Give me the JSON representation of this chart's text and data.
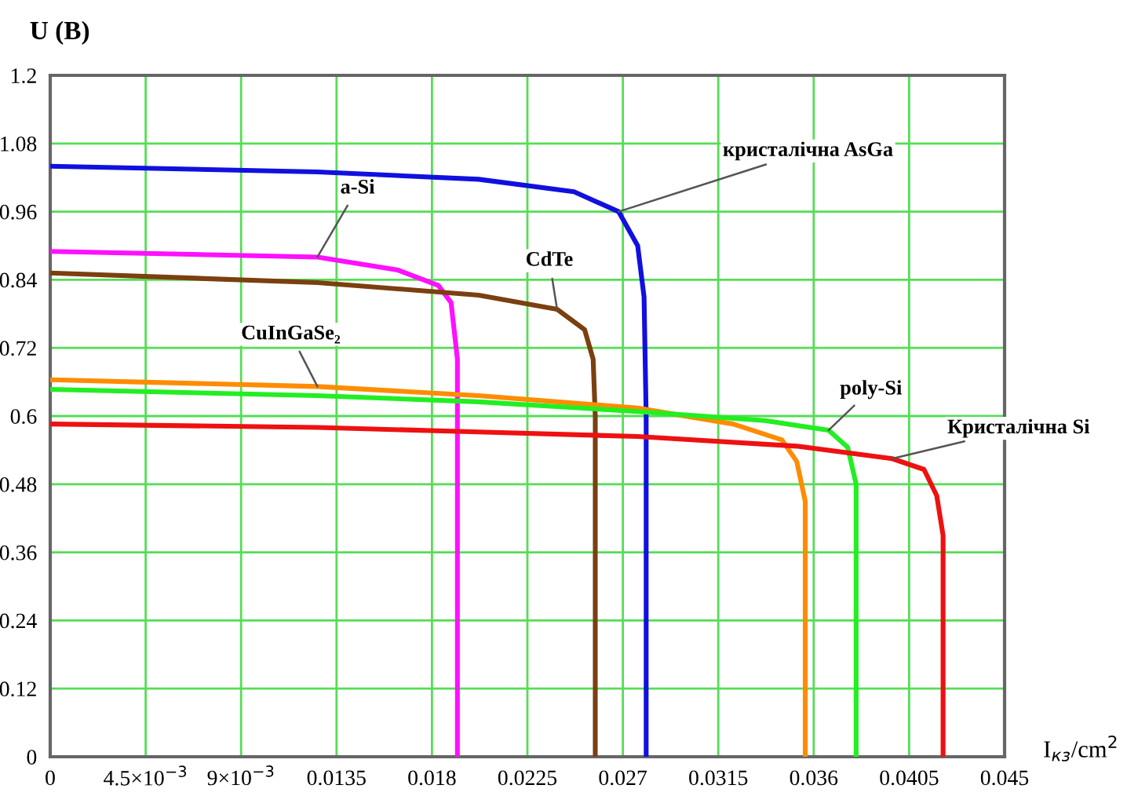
{
  "chart_data": {
    "type": "line",
    "ylabel": "U (B)",
    "xlabel": "I$_{кз}$/cm$^{2}$",
    "xlim": [
      0,
      0.045
    ],
    "xticks": [
      0,
      {
        "value": 0.0045,
        "label": "4.5×10$^{−3}$"
      },
      {
        "value": 0.009,
        "label": "9×10$^{−3}$"
      },
      0.0135,
      0.018,
      0.0225,
      0.027,
      0.0315,
      0.036,
      0.0405,
      0.045
    ],
    "ylim": [
      0,
      1.2
    ],
    "yticks": [
      0,
      0.12,
      0.24,
      0.36,
      0.48,
      0.6,
      0.72,
      0.84,
      0.96,
      1.08,
      1.2
    ],
    "grid": true,
    "marker": "none",
    "line_style": "solid",
    "series": [
      {
        "name": "кристалічна AsGa",
        "color": "#1010e0",
        "x": [
          0,
          0.0126,
          0.0202,
          0.0247,
          0.0268,
          0.0277,
          0.028,
          0.0281,
          0.0281
        ],
        "values": [
          1.04,
          1.03,
          1.017,
          0.995,
          0.96,
          0.9,
          0.81,
          0.6,
          0
        ]
      },
      {
        "name": "a-Si",
        "color": "#ff10ff",
        "x": [
          0,
          0.0126,
          0.0164,
          0.0183,
          0.0189,
          0.0192,
          0.0192
        ],
        "values": [
          0.89,
          0.88,
          0.857,
          0.83,
          0.8,
          0.7,
          0
        ]
      },
      {
        "name": "CdTe",
        "color": "#7b3f10",
        "x": [
          0,
          0.0126,
          0.0202,
          0.0239,
          0.0252,
          0.0256,
          0.0257,
          0.0257
        ],
        "values": [
          0.852,
          0.835,
          0.813,
          0.788,
          0.752,
          0.7,
          0.6,
          0
        ]
      },
      {
        "name": "CuInGaSe₂",
        "color": "#ff8c00",
        "x": [
          0,
          0.0126,
          0.0202,
          0.0277,
          0.0322,
          0.0345,
          0.0352,
          0.0356,
          0.0356
        ],
        "values": [
          0.664,
          0.652,
          0.636,
          0.614,
          0.586,
          0.558,
          0.52,
          0.45,
          0
        ]
      },
      {
        "name": "poly-Si",
        "color": "#22ee22",
        "x": [
          0,
          0.0126,
          0.0202,
          0.0277,
          0.0337,
          0.0367,
          0.0376,
          0.038,
          0.038
        ],
        "values": [
          0.647,
          0.636,
          0.625,
          0.608,
          0.592,
          0.575,
          0.545,
          0.48,
          0
        ]
      },
      {
        "name": "Кристалічна Si",
        "color": "#ee1111",
        "x": [
          0,
          0.0126,
          0.0202,
          0.0277,
          0.0352,
          0.0397,
          0.0412,
          0.0418,
          0.0421,
          0.0421
        ],
        "values": [
          0.586,
          0.58,
          0.572,
          0.564,
          0.547,
          0.525,
          0.506,
          0.46,
          0.39,
          0
        ]
      }
    ]
  }
}
